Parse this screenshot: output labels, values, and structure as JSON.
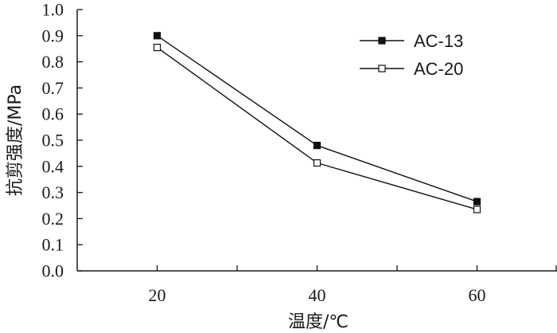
{
  "chart_data": {
    "type": "line",
    "title": "",
    "xlabel": "温度/℃",
    "ylabel": "抗剪强度/MPa",
    "categories": [
      20,
      40,
      60
    ],
    "xlim": [
      10,
      70
    ],
    "ylim": [
      0.0,
      1.0
    ],
    "y_ticks": [
      "0.0",
      "0.1",
      "0.2",
      "0.3",
      "0.4",
      "0.5",
      "0.6",
      "0.7",
      "0.8",
      "0.9",
      "1.0"
    ],
    "x_ticks": [
      "20",
      "40",
      "60"
    ],
    "grid": false,
    "legend_position": "top-right",
    "series": [
      {
        "name": "AC-13",
        "marker": "filled-square",
        "color": "#111111",
        "values": [
          0.9,
          0.48,
          0.265
        ]
      },
      {
        "name": "AC-20",
        "marker": "open-square",
        "color": "#111111",
        "values": [
          0.855,
          0.413,
          0.235
        ]
      }
    ]
  }
}
